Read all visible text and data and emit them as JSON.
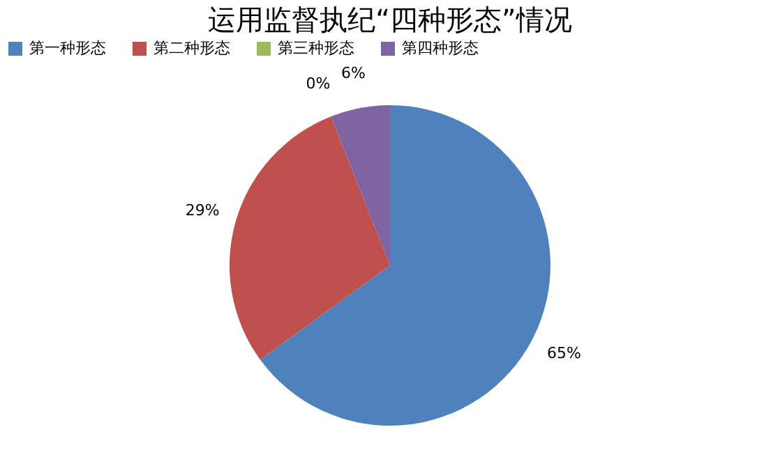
{
  "chart_data": {
    "type": "pie",
    "title": "运用监督执纪“四种形态”情况",
    "categories": [
      "第一种形态",
      "第二种形态",
      "第三种形态",
      "第四种形态"
    ],
    "values": [
      65,
      29,
      0,
      6
    ],
    "colors": [
      "#4f81bd",
      "#c0504d",
      "#9bbb59",
      "#8064a2"
    ],
    "value_labels": [
      "65%",
      "29%",
      "0%",
      "6%"
    ],
    "legend": "top"
  }
}
